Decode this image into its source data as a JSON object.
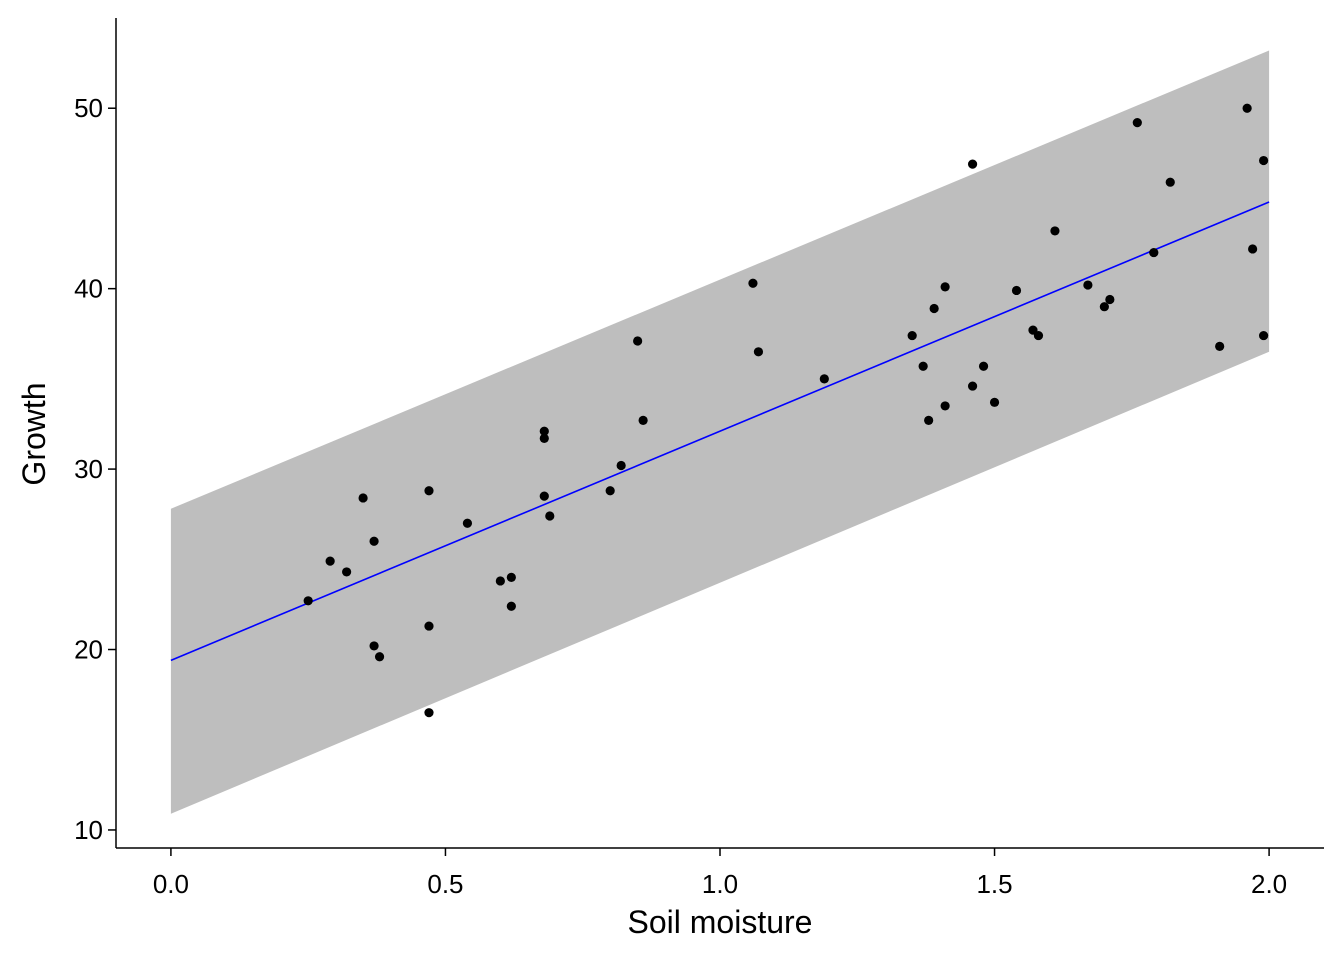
{
  "chart_data": {
    "type": "scatter",
    "title": "",
    "xlabel": "Soil moisture",
    "ylabel": "Growth",
    "xlim": [
      -0.1,
      2.1
    ],
    "ylim": [
      9,
      55
    ],
    "x_ticks": [
      0.0,
      0.5,
      1.0,
      1.5,
      2.0
    ],
    "x_tick_labels": [
      "0.0",
      "0.5",
      "1.0",
      "1.5",
      "2.0"
    ],
    "y_ticks": [
      10,
      20,
      30,
      40,
      50
    ],
    "y_tick_labels": [
      "10",
      "20",
      "30",
      "40",
      "50"
    ],
    "grid": false,
    "legend": "none",
    "fit_line": {
      "x": [
        0.0,
        2.0
      ],
      "y": [
        19.4,
        44.8
      ],
      "color": "#0000ff"
    },
    "prediction_band": {
      "x": [
        0.0,
        2.0
      ],
      "lower": [
        10.9,
        36.5
      ],
      "upper": [
        27.8,
        53.2
      ],
      "color": "#bebebe"
    },
    "point_color": "#000000",
    "points": [
      {
        "x": 0.25,
        "y": 22.7
      },
      {
        "x": 0.29,
        "y": 24.9
      },
      {
        "x": 0.32,
        "y": 24.3
      },
      {
        "x": 0.35,
        "y": 28.4
      },
      {
        "x": 0.37,
        "y": 20.2
      },
      {
        "x": 0.37,
        "y": 26.0
      },
      {
        "x": 0.38,
        "y": 19.6
      },
      {
        "x": 0.47,
        "y": 16.5
      },
      {
        "x": 0.47,
        "y": 21.3
      },
      {
        "x": 0.47,
        "y": 28.8
      },
      {
        "x": 0.54,
        "y": 27.0
      },
      {
        "x": 0.6,
        "y": 23.8
      },
      {
        "x": 0.62,
        "y": 22.4
      },
      {
        "x": 0.62,
        "y": 24.0
      },
      {
        "x": 0.68,
        "y": 28.5
      },
      {
        "x": 0.68,
        "y": 31.7
      },
      {
        "x": 0.68,
        "y": 32.1
      },
      {
        "x": 0.69,
        "y": 27.4
      },
      {
        "x": 0.8,
        "y": 28.8
      },
      {
        "x": 0.82,
        "y": 30.2
      },
      {
        "x": 0.85,
        "y": 37.1
      },
      {
        "x": 0.86,
        "y": 32.7
      },
      {
        "x": 1.06,
        "y": 40.3
      },
      {
        "x": 1.07,
        "y": 36.5
      },
      {
        "x": 1.19,
        "y": 35.0
      },
      {
        "x": 1.35,
        "y": 37.4
      },
      {
        "x": 1.37,
        "y": 35.7
      },
      {
        "x": 1.38,
        "y": 32.7
      },
      {
        "x": 1.39,
        "y": 38.9
      },
      {
        "x": 1.41,
        "y": 33.5
      },
      {
        "x": 1.41,
        "y": 40.1
      },
      {
        "x": 1.46,
        "y": 46.9
      },
      {
        "x": 1.46,
        "y": 34.6
      },
      {
        "x": 1.48,
        "y": 35.7
      },
      {
        "x": 1.5,
        "y": 33.7
      },
      {
        "x": 1.54,
        "y": 39.9
      },
      {
        "x": 1.57,
        "y": 37.7
      },
      {
        "x": 1.58,
        "y": 37.4
      },
      {
        "x": 1.61,
        "y": 43.2
      },
      {
        "x": 1.67,
        "y": 40.2
      },
      {
        "x": 1.7,
        "y": 39.0
      },
      {
        "x": 1.71,
        "y": 39.4
      },
      {
        "x": 1.76,
        "y": 49.2
      },
      {
        "x": 1.79,
        "y": 42.0
      },
      {
        "x": 1.82,
        "y": 45.9
      },
      {
        "x": 1.91,
        "y": 36.8
      },
      {
        "x": 1.96,
        "y": 50.0
      },
      {
        "x": 1.97,
        "y": 42.2
      },
      {
        "x": 1.99,
        "y": 47.1
      },
      {
        "x": 1.99,
        "y": 37.4
      }
    ]
  }
}
